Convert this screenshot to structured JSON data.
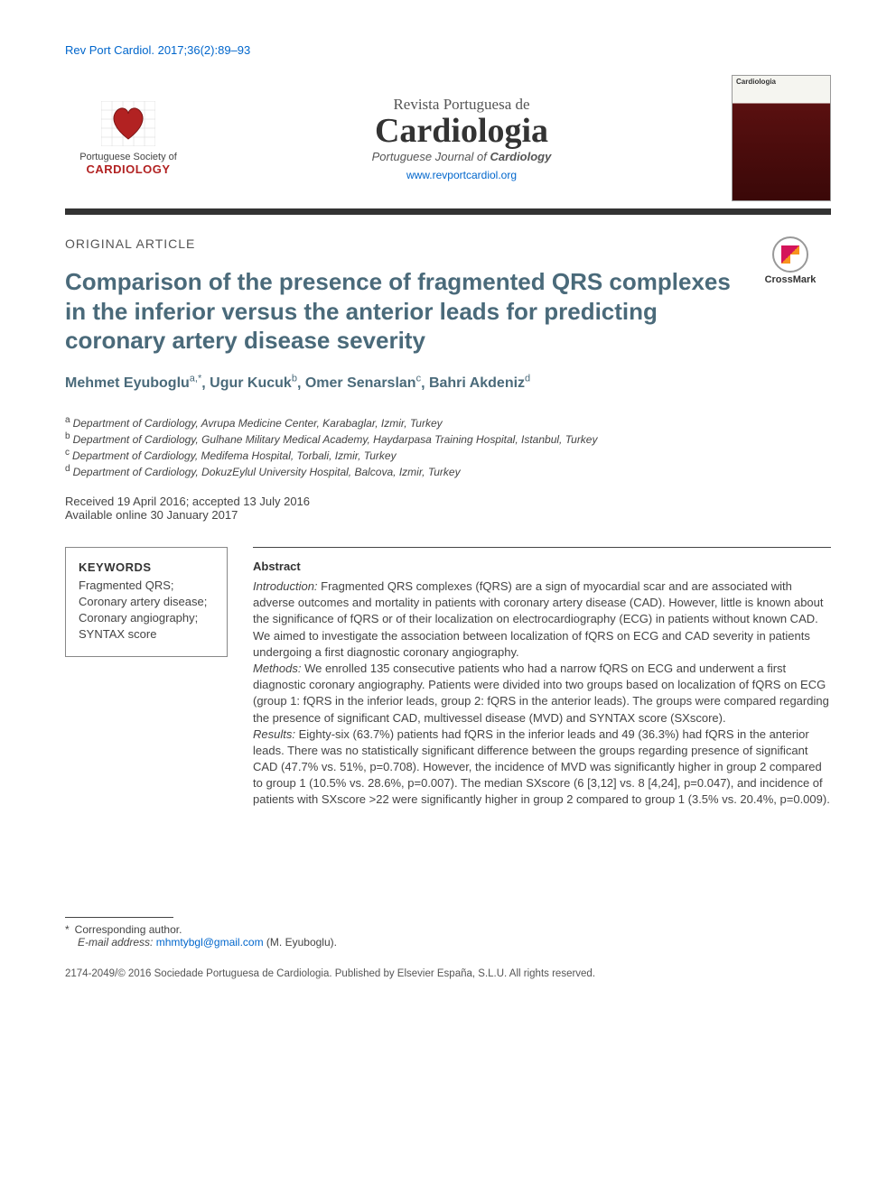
{
  "citation": "Rev Port Cardiol. 2017;36(2):89–93",
  "society": {
    "line1": "Portuguese Society of",
    "line2": "CARDIOLOGY",
    "heart_color": "#b22222",
    "grid_color": "#cccccc"
  },
  "journal": {
    "super": "Revista Portuguesa de",
    "title": "Cardiologia",
    "sub_prefix": "Portuguese Journal of ",
    "sub_bold": "Cardiology",
    "url": "www.revportcardiol.org",
    "cover_header": "Cardiologia"
  },
  "colors": {
    "link": "#0066cc",
    "heading": "#4a6a7a",
    "rule": "#333333",
    "text": "#4a4a4a",
    "brand_red": "#b22222"
  },
  "article_type": "ORIGINAL ARTICLE",
  "title": "Comparison of the presence of fragmented QRS complexes in the inferior versus the anterior leads for predicting coronary artery disease severity",
  "crossmark_label": "CrossMark",
  "authors": [
    {
      "name": "Mehmet Eyuboglu",
      "sup": "a,*"
    },
    {
      "name": "Ugur Kucuk",
      "sup": "b"
    },
    {
      "name": "Omer Senarslan",
      "sup": "c"
    },
    {
      "name": "Bahri Akdeniz",
      "sup": "d"
    }
  ],
  "affiliations": [
    {
      "sup": "a",
      "text": "Department of Cardiology, Avrupa Medicine Center, Karabaglar, Izmir, Turkey"
    },
    {
      "sup": "b",
      "text": "Department of Cardiology, Gulhane Military Medical Academy, Haydarpasa Training Hospital, Istanbul, Turkey"
    },
    {
      "sup": "c",
      "text": "Department of Cardiology, Medifema Hospital, Torbali, Izmir, Turkey"
    },
    {
      "sup": "d",
      "text": "Department of Cardiology, DokuzEylul University Hospital, Balcova, Izmir, Turkey"
    }
  ],
  "dates": {
    "received_accepted": "Received 19 April 2016; accepted 13 July 2016",
    "online": "Available online 30 January 2017"
  },
  "keywords": {
    "heading": "KEYWORDS",
    "items": [
      "Fragmented QRS;",
      "Coronary artery disease;",
      "Coronary angiography;",
      "SYNTAX score"
    ]
  },
  "abstract": {
    "heading": "Abstract",
    "intro_label": "Introduction:",
    "intro": " Fragmented QRS complexes (fQRS) are a sign of myocardial scar and are associated with adverse outcomes and mortality in patients with coronary artery disease (CAD). However, little is known about the significance of fQRS or of their localization on electrocardiography (ECG) in patients without known CAD. We aimed to investigate the association between localization of fQRS on ECG and CAD severity in patients undergoing a first diagnostic coronary angiography.",
    "methods_label": "Methods:",
    "methods": " We enrolled 135 consecutive patients who had a narrow fQRS on ECG and underwent a first diagnostic coronary angiography. Patients were divided into two groups based on localization of fQRS on ECG (group 1: fQRS in the inferior leads, group 2: fQRS in the anterior leads). The groups were compared regarding the presence of significant CAD, multivessel disease (MVD) and SYNTAX score (SXscore).",
    "results_label": "Results:",
    "results": " Eighty-six (63.7%) patients had fQRS in the inferior leads and 49 (36.3%) had fQRS in the anterior leads. There was no statistically significant difference between the groups regarding presence of significant CAD (47.7% vs. 51%, p=0.708). However, the incidence of MVD was significantly higher in group 2 compared to group 1 (10.5% vs. 28.6%, p=0.007). The median SXscore (6 [3,12] vs. 8 [4,24], p=0.047), and incidence of patients with SXscore >22 were significantly higher in group 2 compared to group 1 (3.5% vs. 20.4%, p=0.009)."
  },
  "footnote": {
    "corresponding": "Corresponding author.",
    "email_label": "E-mail address:",
    "email": "mhmtybgl@gmail.com",
    "email_suffix": " (M. Eyuboglu)."
  },
  "copyright": "2174-2049/© 2016 Sociedade Portuguesa de Cardiologia. Published by Elsevier España, S.L.U. All rights reserved."
}
